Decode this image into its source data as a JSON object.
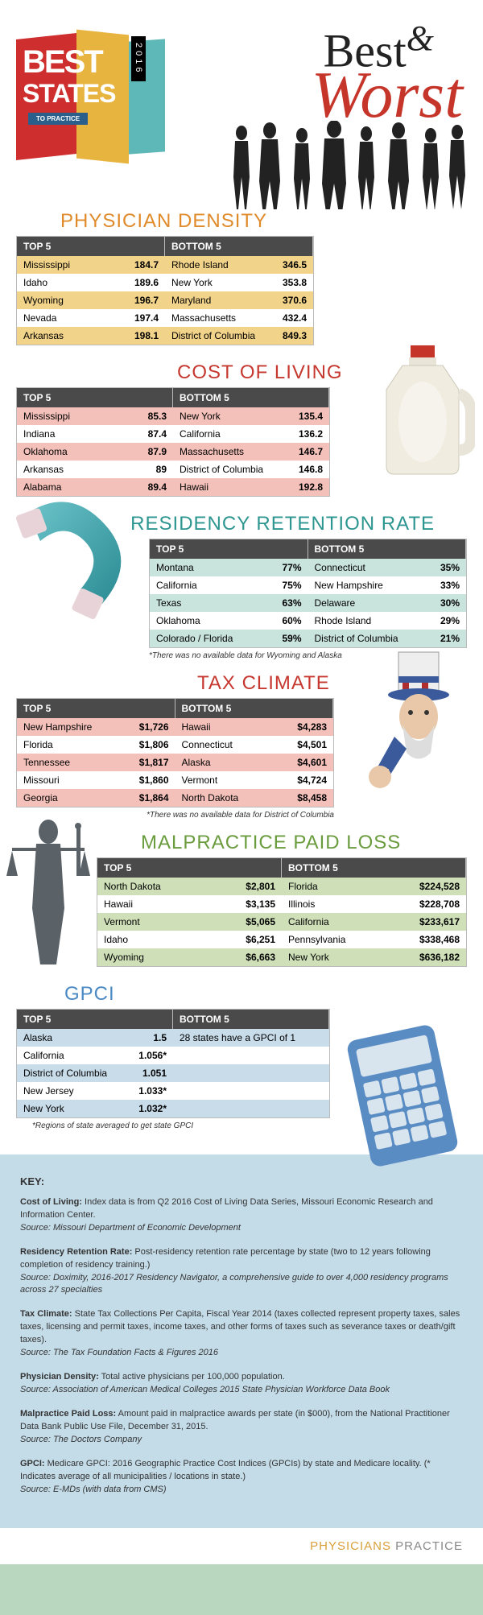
{
  "logo": {
    "best": "BEST",
    "states": "STATES",
    "practice": "TO PRACTICE",
    "year": "2016"
  },
  "title": {
    "best": "Best",
    "amp": "&",
    "worst": "Worst"
  },
  "col_headers": {
    "top": "TOP 5",
    "bottom": "BOTTOM 5"
  },
  "sections": {
    "density": {
      "title": "PHYSICIAN DENSITY",
      "top": [
        [
          "Mississippi",
          "184.7"
        ],
        [
          "Idaho",
          "189.6"
        ],
        [
          "Wyoming",
          "196.7"
        ],
        [
          "Nevada",
          "197.4"
        ],
        [
          "Arkansas",
          "198.1"
        ]
      ],
      "bottom": [
        [
          "Rhode Island",
          "346.5"
        ],
        [
          "New York",
          "353.8"
        ],
        [
          "Maryland",
          "370.6"
        ],
        [
          "Massachusetts",
          "432.4"
        ],
        [
          "District of Columbia",
          "849.3"
        ]
      ]
    },
    "col": {
      "title": "COST OF LIVING",
      "top": [
        [
          "Mississippi",
          "85.3"
        ],
        [
          "Indiana",
          "87.4"
        ],
        [
          "Oklahoma",
          "87.9"
        ],
        [
          "Arkansas",
          "89"
        ],
        [
          "Alabama",
          "89.4"
        ]
      ],
      "bottom": [
        [
          "New York",
          "135.4"
        ],
        [
          "California",
          "136.2"
        ],
        [
          "Massachusetts",
          "146.7"
        ],
        [
          "District of Columbia",
          "146.8"
        ],
        [
          "Hawaii",
          "192.8"
        ]
      ]
    },
    "retention": {
      "title": "RESIDENCY RETENTION RATE",
      "top": [
        [
          "Montana",
          "77%"
        ],
        [
          "California",
          "75%"
        ],
        [
          "Texas",
          "63%"
        ],
        [
          "Oklahoma",
          "60%"
        ],
        [
          "Colorado / Florida",
          "59%"
        ]
      ],
      "bottom": [
        [
          "Connecticut",
          "35%"
        ],
        [
          "New Hampshire",
          "33%"
        ],
        [
          "Delaware",
          "30%"
        ],
        [
          "Rhode Island",
          "29%"
        ],
        [
          "District of Columbia",
          "21%"
        ]
      ],
      "note": "*There was no available data for Wyoming and Alaska"
    },
    "tax": {
      "title": "TAX CLIMATE",
      "top": [
        [
          "New Hampshire",
          "$1,726"
        ],
        [
          "Florida",
          "$1,806"
        ],
        [
          "Tennessee",
          "$1,817"
        ],
        [
          "Missouri",
          "$1,860"
        ],
        [
          "Georgia",
          "$1,864"
        ]
      ],
      "bottom": [
        [
          "Hawaii",
          "$4,283"
        ],
        [
          "Connecticut",
          "$4,501"
        ],
        [
          "Alaska",
          "$4,601"
        ],
        [
          "Vermont",
          "$4,724"
        ],
        [
          "North Dakota",
          "$8,458"
        ]
      ],
      "note": "*There was no available data for District of Columbia"
    },
    "malpractice": {
      "title": "MALPRACTICE PAID LOSS",
      "top": [
        [
          "North Dakota",
          "$2,801"
        ],
        [
          "Hawaii",
          "$3,135"
        ],
        [
          "Vermont",
          "$5,065"
        ],
        [
          "Idaho",
          "$6,251"
        ],
        [
          "Wyoming",
          "$6,663"
        ]
      ],
      "bottom": [
        [
          "Florida",
          "$224,528"
        ],
        [
          "Illinois",
          "$228,708"
        ],
        [
          "California",
          "$233,617"
        ],
        [
          "Pennsylvania",
          "$338,468"
        ],
        [
          "New York",
          "$636,182"
        ]
      ]
    },
    "gpci": {
      "title": "GPCI",
      "top": [
        [
          "Alaska",
          "1.5"
        ],
        [
          "California",
          "1.056*"
        ],
        [
          "District of Columbia",
          "1.051"
        ],
        [
          "New Jersey",
          "1.033*"
        ],
        [
          "New York",
          "1.032*"
        ]
      ],
      "bottom_one": "28 states have a GPCI of 1",
      "note": "*Regions of state averaged to get state GPCI"
    }
  },
  "key": {
    "heading": "KEY:",
    "blocks": [
      {
        "t": "Cost of Living:",
        "d": " Index data is from Q2 2016 Cost of Living Data Series, Missouri Economic Research and Information Center.",
        "s": "Source: Missouri Department of Economic Development"
      },
      {
        "t": "Residency Retention Rate:",
        "d": " Post-residency retention rate percentage by state (two to 12 years following completion of residency training.)",
        "s": "Source: Doximity, 2016-2017 Residency Navigator, a comprehensive guide to over 4,000 residency programs across 27 specialties"
      },
      {
        "t": "Tax Climate:",
        "d": " State Tax Collections Per Capita, Fiscal Year 2014 (taxes collected represent property taxes, sales taxes, licensing and permit taxes, income taxes, and other forms of taxes such as severance taxes or death/gift taxes).",
        "s": "Source: The Tax Foundation Facts & Figures 2016"
      },
      {
        "t": "Physician Density:",
        "d": " Total active physicians per 100,000 population.",
        "s": "Source: Association of American Medical Colleges 2015 State Physician Workforce Data Book"
      },
      {
        "t": "Malpractice Paid Loss:",
        "d": " Amount paid in malpractice awards per state (in $000), from the National Practitioner Data Bank Public Use File, December 31, 2015.",
        "s": "Source: The Doctors Company"
      },
      {
        "t": "GPCI:",
        "d": " Medicare GPCI: 2016 Geographic Practice Cost Indices (GPCIs) by state and Medicare locality. (* Indicates average of all municipalities / locations in state.)",
        "s": "Source: E-MDs (with data from CMS)"
      }
    ]
  },
  "brand": {
    "p1": "PHYSICIANS",
    "p2": " PRACTICE"
  }
}
